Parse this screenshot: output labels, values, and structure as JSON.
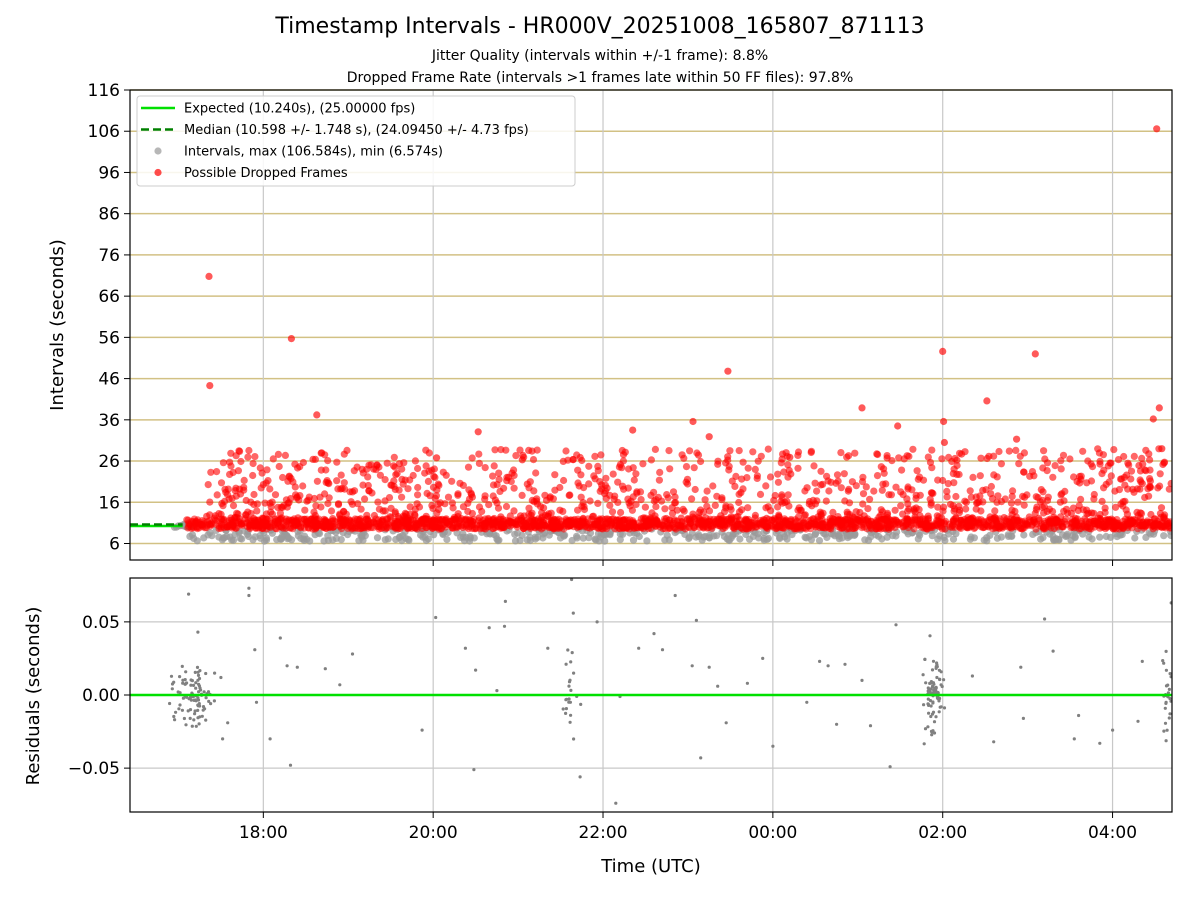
{
  "title": "Timestamp Intervals - HR000V_20251008_165807_871113",
  "subtitles": [
    "Jitter Quality (intervals within +/-1 frame): 8.8%",
    "Dropped Frame Rate (intervals >1 frames late within 50 FF files): 97.8%"
  ],
  "colors": {
    "expected": "#00e000",
    "median": "#008000",
    "intervals": "#999999",
    "dropped": "#ff0000",
    "residuals": "#808080",
    "hgrid": "#d2c184",
    "vgrid": "#c8c8c8"
  },
  "chart_data": [
    {
      "type": "scatter",
      "title": "Timestamp Intervals - HR000V_20251008_165807_871113",
      "xlabel": "",
      "ylabel": "Intervals (seconds)",
      "x_axis": {
        "kind": "time_utc",
        "range_hours": [
          16.43,
          28.7
        ],
        "ticks": [
          {
            "hour": 18,
            "label": "18:00"
          },
          {
            "hour": 20,
            "label": "20:00"
          },
          {
            "hour": 22,
            "label": "22:00"
          },
          {
            "hour": 24,
            "label": "00:00"
          },
          {
            "hour": 26,
            "label": "02:00"
          },
          {
            "hour": 28,
            "label": "04:00"
          }
        ]
      },
      "ylim": [
        2,
        116
      ],
      "yticks": [
        6,
        16,
        26,
        36,
        46,
        56,
        66,
        76,
        86,
        96,
        106,
        116
      ],
      "grid": true,
      "legend_position": "upper-left",
      "legend": [
        {
          "label": "Expected (10.240s), (25.00000 fps)",
          "marker": "solid-line",
          "color": "#00e000"
        },
        {
          "label": "Median (10.598 +/- 1.748 s), (24.09450 +/- 4.73 fps)",
          "marker": "dashed-line",
          "color": "#008000"
        },
        {
          "label": "Intervals, max (106.584s), min (6.574s)",
          "marker": "dot",
          "color": "#999999"
        },
        {
          "label": "Possible Dropped Frames",
          "marker": "dot",
          "color": "#ff0000"
        }
      ],
      "expected_interval": 10.24,
      "median_interval": 10.598,
      "intervals_summary": {
        "max": 106.584,
        "min": 6.574
      },
      "dense_band": {
        "from_hour": 17.08,
        "to_hour": 28.7,
        "low": 9.5,
        "high": 12.0
      },
      "outliers_dropped": [
        {
          "hour": 17.36,
          "value": 70.8
        },
        {
          "hour": 17.37,
          "value": 44.3
        },
        {
          "hour": 18.33,
          "value": 55.7
        },
        {
          "hour": 18.63,
          "value": 37.2
        },
        {
          "hour": 20.04,
          "value": 26.8
        },
        {
          "hour": 20.53,
          "value": 33.1
        },
        {
          "hour": 21.05,
          "value": 26.3
        },
        {
          "hour": 22.35,
          "value": 33.5
        },
        {
          "hour": 23.06,
          "value": 35.6
        },
        {
          "hour": 23.25,
          "value": 31.9
        },
        {
          "hour": 23.47,
          "value": 47.8
        },
        {
          "hour": 24.2,
          "value": 26.9
        },
        {
          "hour": 25.05,
          "value": 38.9
        },
        {
          "hour": 25.47,
          "value": 34.5
        },
        {
          "hour": 26.0,
          "value": 52.6
        },
        {
          "hour": 26.01,
          "value": 35.6
        },
        {
          "hour": 26.02,
          "value": 30.5
        },
        {
          "hour": 26.52,
          "value": 40.6
        },
        {
          "hour": 26.87,
          "value": 31.3
        },
        {
          "hour": 27.09,
          "value": 52.0
        },
        {
          "hour": 28.48,
          "value": 36.2
        },
        {
          "hour": 28.52,
          "value": 106.584
        },
        {
          "hour": 28.55,
          "value": 38.9
        },
        {
          "hour": 28.58,
          "value": 29.0
        }
      ],
      "intervals_below_expected": {
        "typical_low": 6.574,
        "typical_high": 9.5
      }
    },
    {
      "type": "scatter",
      "title": "",
      "xlabel": "Time (UTC)",
      "ylabel": "Residuals (seconds)",
      "ylim": [
        -0.08,
        0.08
      ],
      "yticks": [
        -0.05,
        0.0,
        0.05
      ],
      "ytick_labels": [
        "−0.05",
        "0.00",
        "0.05"
      ],
      "grid": true,
      "reference_line": {
        "value": 0.0,
        "color": "#00e000"
      },
      "clusters": [
        {
          "center_hour": 17.18,
          "spread_hours": 0.22,
          "amplitude": 0.02,
          "count": 90
        },
        {
          "center_hour": 21.6,
          "spread_hours": 0.08,
          "amplitude": 0.035,
          "count": 22
        },
        {
          "center_hour": 25.9,
          "spread_hours": 0.12,
          "amplitude": 0.025,
          "count": 85
        },
        {
          "center_hour": 28.63,
          "spread_hours": 0.07,
          "amplitude": 0.03,
          "count": 25
        }
      ],
      "points": [
        {
          "hour": 17.12,
          "value": 0.069
        },
        {
          "hour": 17.83,
          "value": 0.073
        },
        {
          "hour": 17.83,
          "value": 0.068
        },
        {
          "hour": 17.23,
          "value": 0.043
        },
        {
          "hour": 17.9,
          "value": 0.031
        },
        {
          "hour": 18.2,
          "value": 0.039
        },
        {
          "hour": 18.28,
          "value": 0.02
        },
        {
          "hour": 18.4,
          "value": 0.019
        },
        {
          "hour": 18.73,
          "value": 0.018
        },
        {
          "hour": 19.05,
          "value": 0.028
        },
        {
          "hour": 18.9,
          "value": 0.007
        },
        {
          "hour": 17.5,
          "value": 0.012
        },
        {
          "hour": 18.08,
          "value": -0.03
        },
        {
          "hour": 18.32,
          "value": -0.048
        },
        {
          "hour": 17.92,
          "value": -0.005
        },
        {
          "hour": 17.52,
          "value": -0.03
        },
        {
          "hour": 17.58,
          "value": -0.019
        },
        {
          "hour": 19.87,
          "value": -0.024
        },
        {
          "hour": 20.03,
          "value": 0.053
        },
        {
          "hour": 20.38,
          "value": 0.032
        },
        {
          "hour": 20.5,
          "value": 0.017
        },
        {
          "hour": 20.66,
          "value": 0.046
        },
        {
          "hour": 20.85,
          "value": 0.064
        },
        {
          "hour": 20.84,
          "value": 0.047
        },
        {
          "hour": 20.48,
          "value": -0.051
        },
        {
          "hour": 20.75,
          "value": 0.003
        },
        {
          "hour": 21.35,
          "value": 0.032
        },
        {
          "hour": 21.63,
          "value": 0.079
        },
        {
          "hour": 21.65,
          "value": 0.056
        },
        {
          "hour": 21.73,
          "value": -0.056
        },
        {
          "hour": 21.93,
          "value": 0.05
        },
        {
          "hour": 22.15,
          "value": -0.074
        },
        {
          "hour": 22.2,
          "value": -0.001
        },
        {
          "hour": 22.42,
          "value": 0.032
        },
        {
          "hour": 22.6,
          "value": 0.042
        },
        {
          "hour": 22.7,
          "value": 0.031
        },
        {
          "hour": 22.85,
          "value": 0.068
        },
        {
          "hour": 23.1,
          "value": 0.051
        },
        {
          "hour": 23.05,
          "value": 0.02
        },
        {
          "hour": 23.15,
          "value": -0.043
        },
        {
          "hour": 23.25,
          "value": 0.019
        },
        {
          "hour": 23.35,
          "value": 0.006
        },
        {
          "hour": 23.45,
          "value": -0.019
        },
        {
          "hour": 23.7,
          "value": 0.008
        },
        {
          "hour": 23.88,
          "value": 0.025
        },
        {
          "hour": 24.0,
          "value": -0.035
        },
        {
          "hour": 24.4,
          "value": -0.005
        },
        {
          "hour": 24.55,
          "value": 0.023
        },
        {
          "hour": 24.65,
          "value": 0.02
        },
        {
          "hour": 24.85,
          "value": 0.021
        },
        {
          "hour": 24.75,
          "value": -0.02
        },
        {
          "hour": 25.05,
          "value": 0.01
        },
        {
          "hour": 25.15,
          "value": -0.021
        },
        {
          "hour": 25.38,
          "value": -0.049
        },
        {
          "hour": 25.45,
          "value": 0.048
        },
        {
          "hour": 26.35,
          "value": 0.013
        },
        {
          "hour": 26.6,
          "value": -0.032
        },
        {
          "hour": 26.92,
          "value": 0.019
        },
        {
          "hour": 26.95,
          "value": -0.016
        },
        {
          "hour": 27.2,
          "value": 0.052
        },
        {
          "hour": 27.3,
          "value": 0.03
        },
        {
          "hour": 27.55,
          "value": -0.03
        },
        {
          "hour": 27.6,
          "value": -0.014
        },
        {
          "hour": 27.85,
          "value": -0.033
        },
        {
          "hour": 28.0,
          "value": -0.024
        },
        {
          "hour": 28.35,
          "value": 0.023
        },
        {
          "hour": 28.3,
          "value": -0.018
        },
        {
          "hour": 28.69,
          "value": 0.063
        }
      ]
    }
  ]
}
